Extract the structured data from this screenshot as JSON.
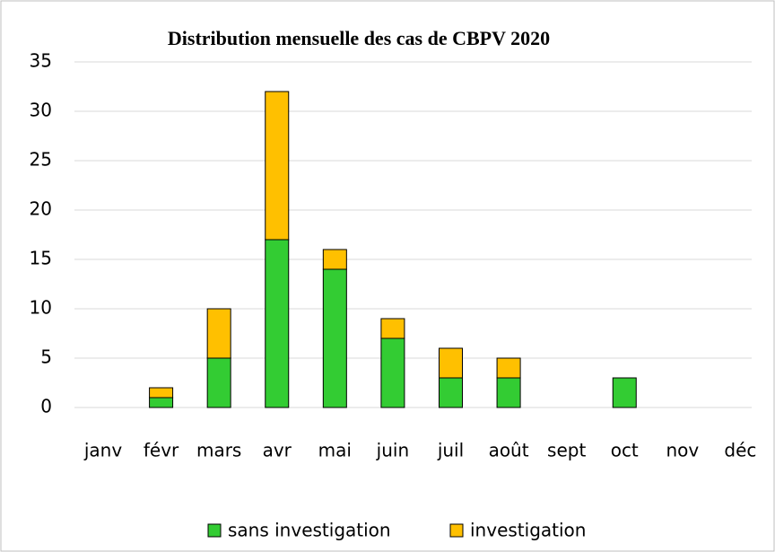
{
  "chart_data": {
    "type": "stacked_bar",
    "title": "Distribution mensuelle des cas de CBPV 2020",
    "categories": [
      "janv",
      "févr",
      "mars",
      "avr",
      "mai",
      "juin",
      "juil",
      "août",
      "sept",
      "oct",
      "nov",
      "déc"
    ],
    "series": [
      {
        "name": "sans investigation",
        "color": "#33cc33",
        "values": [
          0,
          1,
          5,
          17,
          14,
          7,
          3,
          3,
          0,
          3,
          0,
          0
        ]
      },
      {
        "name": "investigation",
        "color": "#ffc000",
        "values": [
          0,
          1,
          5,
          15,
          2,
          2,
          3,
          2,
          0,
          0,
          0,
          0
        ]
      }
    ],
    "ylim": [
      0,
      35
    ],
    "yticks": [
      0,
      5,
      10,
      15,
      20,
      25,
      30,
      35
    ],
    "grid": true,
    "legend": "bottom"
  }
}
